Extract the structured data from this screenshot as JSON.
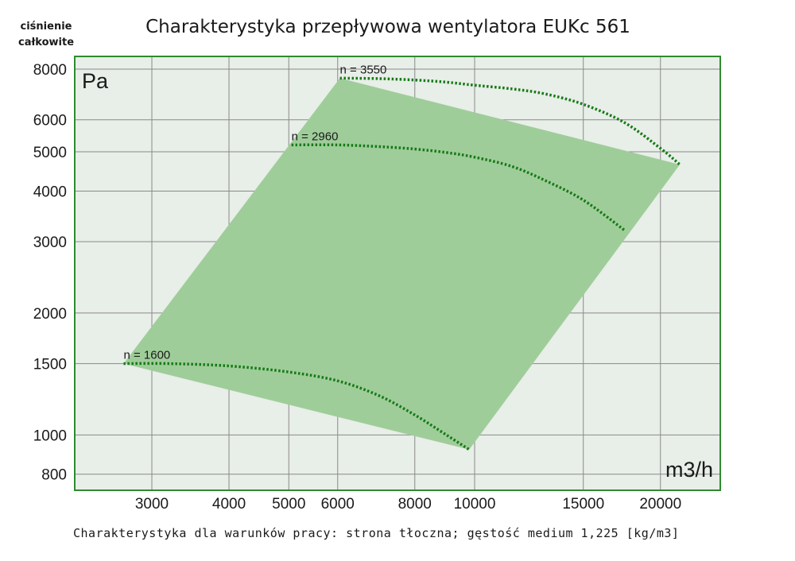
{
  "title": "Charakterystyka przepływowa wentylatora EUKc 561",
  "y_axis_label_line1": "ciśnienie",
  "y_axis_label_line2": "całkowite",
  "y_unit": "Pa",
  "x_unit": "m3/h",
  "footnote": "Charakterystyka dla warunków pracy: strona tłoczna; gęstość medium 1,225 [kg/m3]",
  "colors": {
    "plot_background": "#e8eee8",
    "frame": "#2e8b2e",
    "grid": "#8a8a8a",
    "operating_area": "#9fcd9a",
    "curve": "#167a16"
  },
  "chart_data": {
    "type": "line",
    "title": "Charakterystyka przepływowa wentylatora EUKc 561",
    "xlabel": "m3/h",
    "ylabel": "ciśnienie całkowite",
    "x_scale": "log",
    "y_scale": "log",
    "xlim": [
      2250,
      25000
    ],
    "ylim": [
      730,
      8600
    ],
    "grid": true,
    "x_ticks": [
      3000,
      4000,
      5000,
      6000,
      8000,
      10000,
      15000,
      20000
    ],
    "x_tick_labels": [
      "3000",
      "4000",
      "5000",
      "6000",
      "8000",
      "10000",
      "15000",
      "20000"
    ],
    "y_ticks": [
      800,
      1000,
      1500,
      2000,
      3000,
      4000,
      5000,
      6000,
      8000
    ],
    "y_tick_labels": [
      "800",
      "1000",
      "1500",
      "2000",
      "3000",
      "4000",
      "5000",
      "6000",
      "8000"
    ],
    "operating_area": {
      "x": [
        2700,
        6050,
        21500,
        9800
      ],
      "y": [
        1500,
        7600,
        4650,
        920
      ]
    },
    "series": [
      {
        "name": "n = 1600",
        "x": [
          2700,
          3200,
          4000,
          5000,
          6000,
          7000,
          8000,
          9000,
          9800
        ],
        "y": [
          1500,
          1500,
          1480,
          1430,
          1360,
          1250,
          1120,
          1000,
          920
        ]
      },
      {
        "name": "n = 2960",
        "x": [
          5050,
          6000,
          7000,
          8000,
          9000,
          10000,
          11500,
          13000,
          15000,
          17500
        ],
        "y": [
          5200,
          5200,
          5150,
          5080,
          4980,
          4850,
          4600,
          4250,
          3800,
          3200
        ]
      },
      {
        "name": "n = 3550",
        "x": [
          6050,
          7000,
          8000,
          9000,
          10000,
          11500,
          13000,
          15000,
          17500,
          20000,
          21500
        ],
        "y": [
          7600,
          7580,
          7520,
          7430,
          7300,
          7150,
          6950,
          6550,
          5900,
          5100,
          4650
        ]
      }
    ]
  }
}
